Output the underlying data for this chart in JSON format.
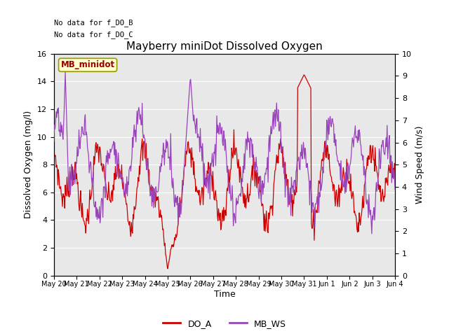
{
  "title": "Mayberry miniDot Dissolved Oxygen",
  "xlabel": "Time",
  "ylabel_left": "Dissolved Oxygen (mg/l)",
  "ylabel_right": "Wind Speed (m/s)",
  "annotation_line1": "No data for f_DO_B",
  "annotation_line2": "No data for f_DO_C",
  "legend_box_label": "MB_minidot",
  "legend_box_facecolor": "#FFFFCC",
  "legend_box_edgecolor": "#999900",
  "legend_box_text_color": "#990000",
  "do_color": "#CC0000",
  "ws_color": "#9944BB",
  "ylim_left": [
    0,
    16
  ],
  "ylim_right": [
    0.0,
    10.0
  ],
  "yticks_left": [
    0,
    2,
    4,
    6,
    8,
    10,
    12,
    14,
    16
  ],
  "yticks_right": [
    0.0,
    1.0,
    2.0,
    3.0,
    4.0,
    5.0,
    6.0,
    7.0,
    8.0,
    9.0,
    10.0
  ],
  "xtick_labels": [
    "May 20",
    "May 21",
    "May 22",
    "May 23",
    "May 24",
    "May 25",
    "May 26",
    "May 27",
    "May 28",
    "May 29",
    "May 30",
    "May 31",
    "Jun 1",
    "Jun 2",
    "Jun 3",
    "Jun 4"
  ],
  "bg_color": "#E8E8E8",
  "grid_color": "#FFFFFF",
  "legend_labels": [
    "DO_A",
    "MB_WS"
  ],
  "legend_colors": [
    "#CC0000",
    "#9944BB"
  ],
  "figwidth": 6.4,
  "figheight": 4.8,
  "dpi": 100
}
